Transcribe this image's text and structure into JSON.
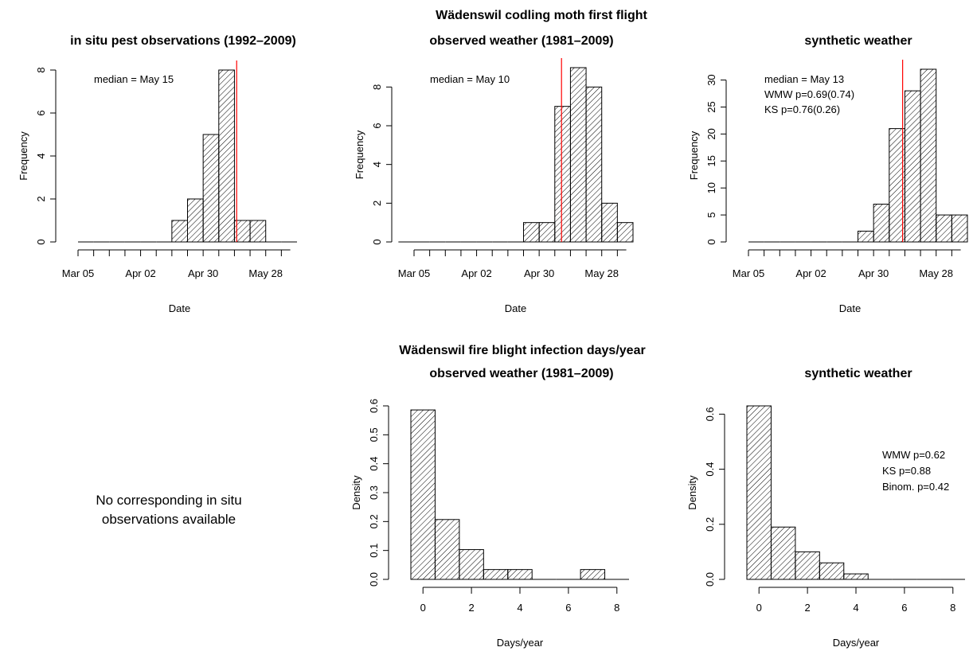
{
  "figure": {
    "top_title_line1": "Wädenswil codling moth first flight",
    "bottom_title_line1": "Wädenswil fire blight infection days/year",
    "note_line1": "No corresponding in situ",
    "note_line2": "observations available"
  },
  "chart_data": [
    {
      "type": "bar",
      "title": "in situ pest observations (1992–2009)",
      "xlabel": "Date",
      "ylabel": "Frequency",
      "x_tick_labels": [
        "Mar 05",
        "Apr 02",
        "Apr 30",
        "May 28"
      ],
      "x_tick_values_day_of_year": [
        64,
        92,
        120,
        148
      ],
      "bin_width_days": 7,
      "bin_starts_day_of_year": [
        64,
        71,
        78,
        85,
        92,
        99,
        106,
        113,
        120,
        127,
        134,
        141,
        148,
        155
      ],
      "values": [
        0,
        0,
        0,
        0,
        0,
        0,
        1,
        2,
        5,
        8,
        1,
        1,
        0,
        0
      ],
      "ylim": [
        0,
        8
      ],
      "y_ticks": [
        0,
        2,
        4,
        6,
        8
      ],
      "xlim_day_of_year": [
        64,
        162
      ],
      "median_line": {
        "label": "May 15",
        "day_of_year": 135,
        "color": "#ff0000"
      },
      "annotations": [
        "median = May 15"
      ]
    },
    {
      "type": "bar",
      "title": "observed weather (1981–2009)",
      "xlabel": "Date",
      "ylabel": "Frequency",
      "x_tick_labels": [
        "Mar 05",
        "Apr 02",
        "Apr 30",
        "May 28"
      ],
      "x_tick_values_day_of_year": [
        64,
        92,
        120,
        148
      ],
      "bin_width_days": 7,
      "bin_starts_day_of_year": [
        64,
        71,
        78,
        85,
        92,
        99,
        106,
        113,
        120,
        127,
        134,
        141,
        148,
        155
      ],
      "values": [
        0,
        0,
        0,
        0,
        0,
        0,
        0,
        0,
        1,
        1,
        7,
        9,
        8,
        2,
        1
      ],
      "values_note_bins": "15 bins starting at day 57",
      "bin_starts_override": [
        57,
        64,
        71,
        78,
        85,
        92,
        99,
        106,
        113,
        120,
        127,
        134,
        141,
        148,
        155
      ],
      "ylim": [
        0,
        9
      ],
      "y_ticks": [
        0,
        2,
        4,
        6,
        8
      ],
      "xlim_day_of_year": [
        64,
        162
      ],
      "median_line": {
        "label": "May 10",
        "day_of_year": 130,
        "color": "#ff0000"
      },
      "annotations": [
        "median = May 10"
      ]
    },
    {
      "type": "bar",
      "title": "synthetic weather",
      "xlabel": "Date",
      "ylabel": "Frequency",
      "x_tick_labels": [
        "Mar 05",
        "Apr 02",
        "Apr 30",
        "May 28"
      ],
      "x_tick_values_day_of_year": [
        64,
        92,
        120,
        148
      ],
      "bin_width_days": 7,
      "bin_starts_day_of_year": [
        64,
        71,
        78,
        85,
        92,
        99,
        106,
        113,
        120,
        127,
        134,
        141,
        148,
        155
      ],
      "values": [
        0,
        0,
        0,
        0,
        0,
        0,
        0,
        2,
        7,
        21,
        28,
        32,
        5,
        5
      ],
      "ylim": [
        0,
        32
      ],
      "y_ticks": [
        0,
        5,
        10,
        15,
        20,
        25,
        30
      ],
      "xlim_day_of_year": [
        64,
        162
      ],
      "median_line": {
        "label": "May 13",
        "day_of_year": 133,
        "color": "#ff0000"
      },
      "annotations": [
        "median = May 13",
        "WMW p=0.69(0.74)",
        "KS p=0.76(0.26)"
      ]
    },
    {
      "type": "bar",
      "title": "observed weather (1981–2009)",
      "xlabel": "Days/year",
      "ylabel": "Density",
      "bin_edges": [
        -0.5,
        0.5,
        1.5,
        2.5,
        3.5,
        4.5,
        5.5,
        6.5,
        7.5,
        8.5
      ],
      "values": [
        0.586,
        0.207,
        0.103,
        0.034,
        0.034,
        0.0,
        0.0,
        0.034,
        0.0
      ],
      "x_ticks": [
        0,
        2,
        4,
        6,
        8
      ],
      "ylim": [
        0,
        0.6
      ],
      "y_ticks": [
        0.0,
        0.1,
        0.2,
        0.3,
        0.4,
        0.5,
        0.6
      ],
      "y_tick_labels": [
        "0.0",
        "0.1",
        "0.2",
        "0.3",
        "0.4",
        "0.5",
        "0.6"
      ],
      "annotations": []
    },
    {
      "type": "bar",
      "title": "synthetic weather",
      "xlabel": "Days/year",
      "ylabel": "Density",
      "bin_edges": [
        -0.5,
        0.5,
        1.5,
        2.5,
        3.5,
        4.5,
        5.5,
        6.5,
        7.5,
        8.5
      ],
      "values": [
        0.63,
        0.19,
        0.1,
        0.06,
        0.02,
        0.0,
        0.0,
        0.0,
        0.0
      ],
      "x_ticks": [
        0,
        2,
        4,
        6,
        8
      ],
      "ylim": [
        0,
        0.63
      ],
      "y_ticks": [
        0.0,
        0.2,
        0.4,
        0.6
      ],
      "y_tick_labels": [
        "0.0",
        "0.2",
        "0.4",
        "0.6"
      ],
      "annotations": [
        "WMW p=0.62",
        "KS p=0.88",
        "Binom. p=0.42"
      ]
    }
  ]
}
